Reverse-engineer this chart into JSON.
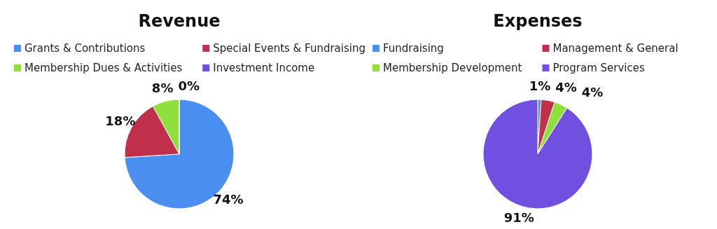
{
  "chart_data": [
    {
      "type": "pie",
      "title": "Revenue",
      "categories": [
        "Grants & Contributions",
        "Special Events & Fundraising",
        "Membership Dues & Activities",
        "Investment Income"
      ],
      "values": [
        74,
        18,
        8,
        0
      ],
      "colors": [
        "#4a8ff0",
        "#c0304a",
        "#8fe03c",
        "#7050e0"
      ],
      "value_labels": [
        "74%",
        "18%",
        "8%",
        "0%"
      ],
      "legend": "top"
    },
    {
      "type": "pie",
      "title": "Expenses",
      "categories": [
        "Fundraising",
        "Management & General",
        "Membership Development",
        "Program Services"
      ],
      "values": [
        1,
        4,
        4,
        91
      ],
      "colors": [
        "#4a8ff0",
        "#c0304a",
        "#8fe03c",
        "#7050e0"
      ],
      "value_labels": [
        "1%",
        "4%",
        "4%",
        "91%"
      ],
      "legend": "top"
    }
  ]
}
